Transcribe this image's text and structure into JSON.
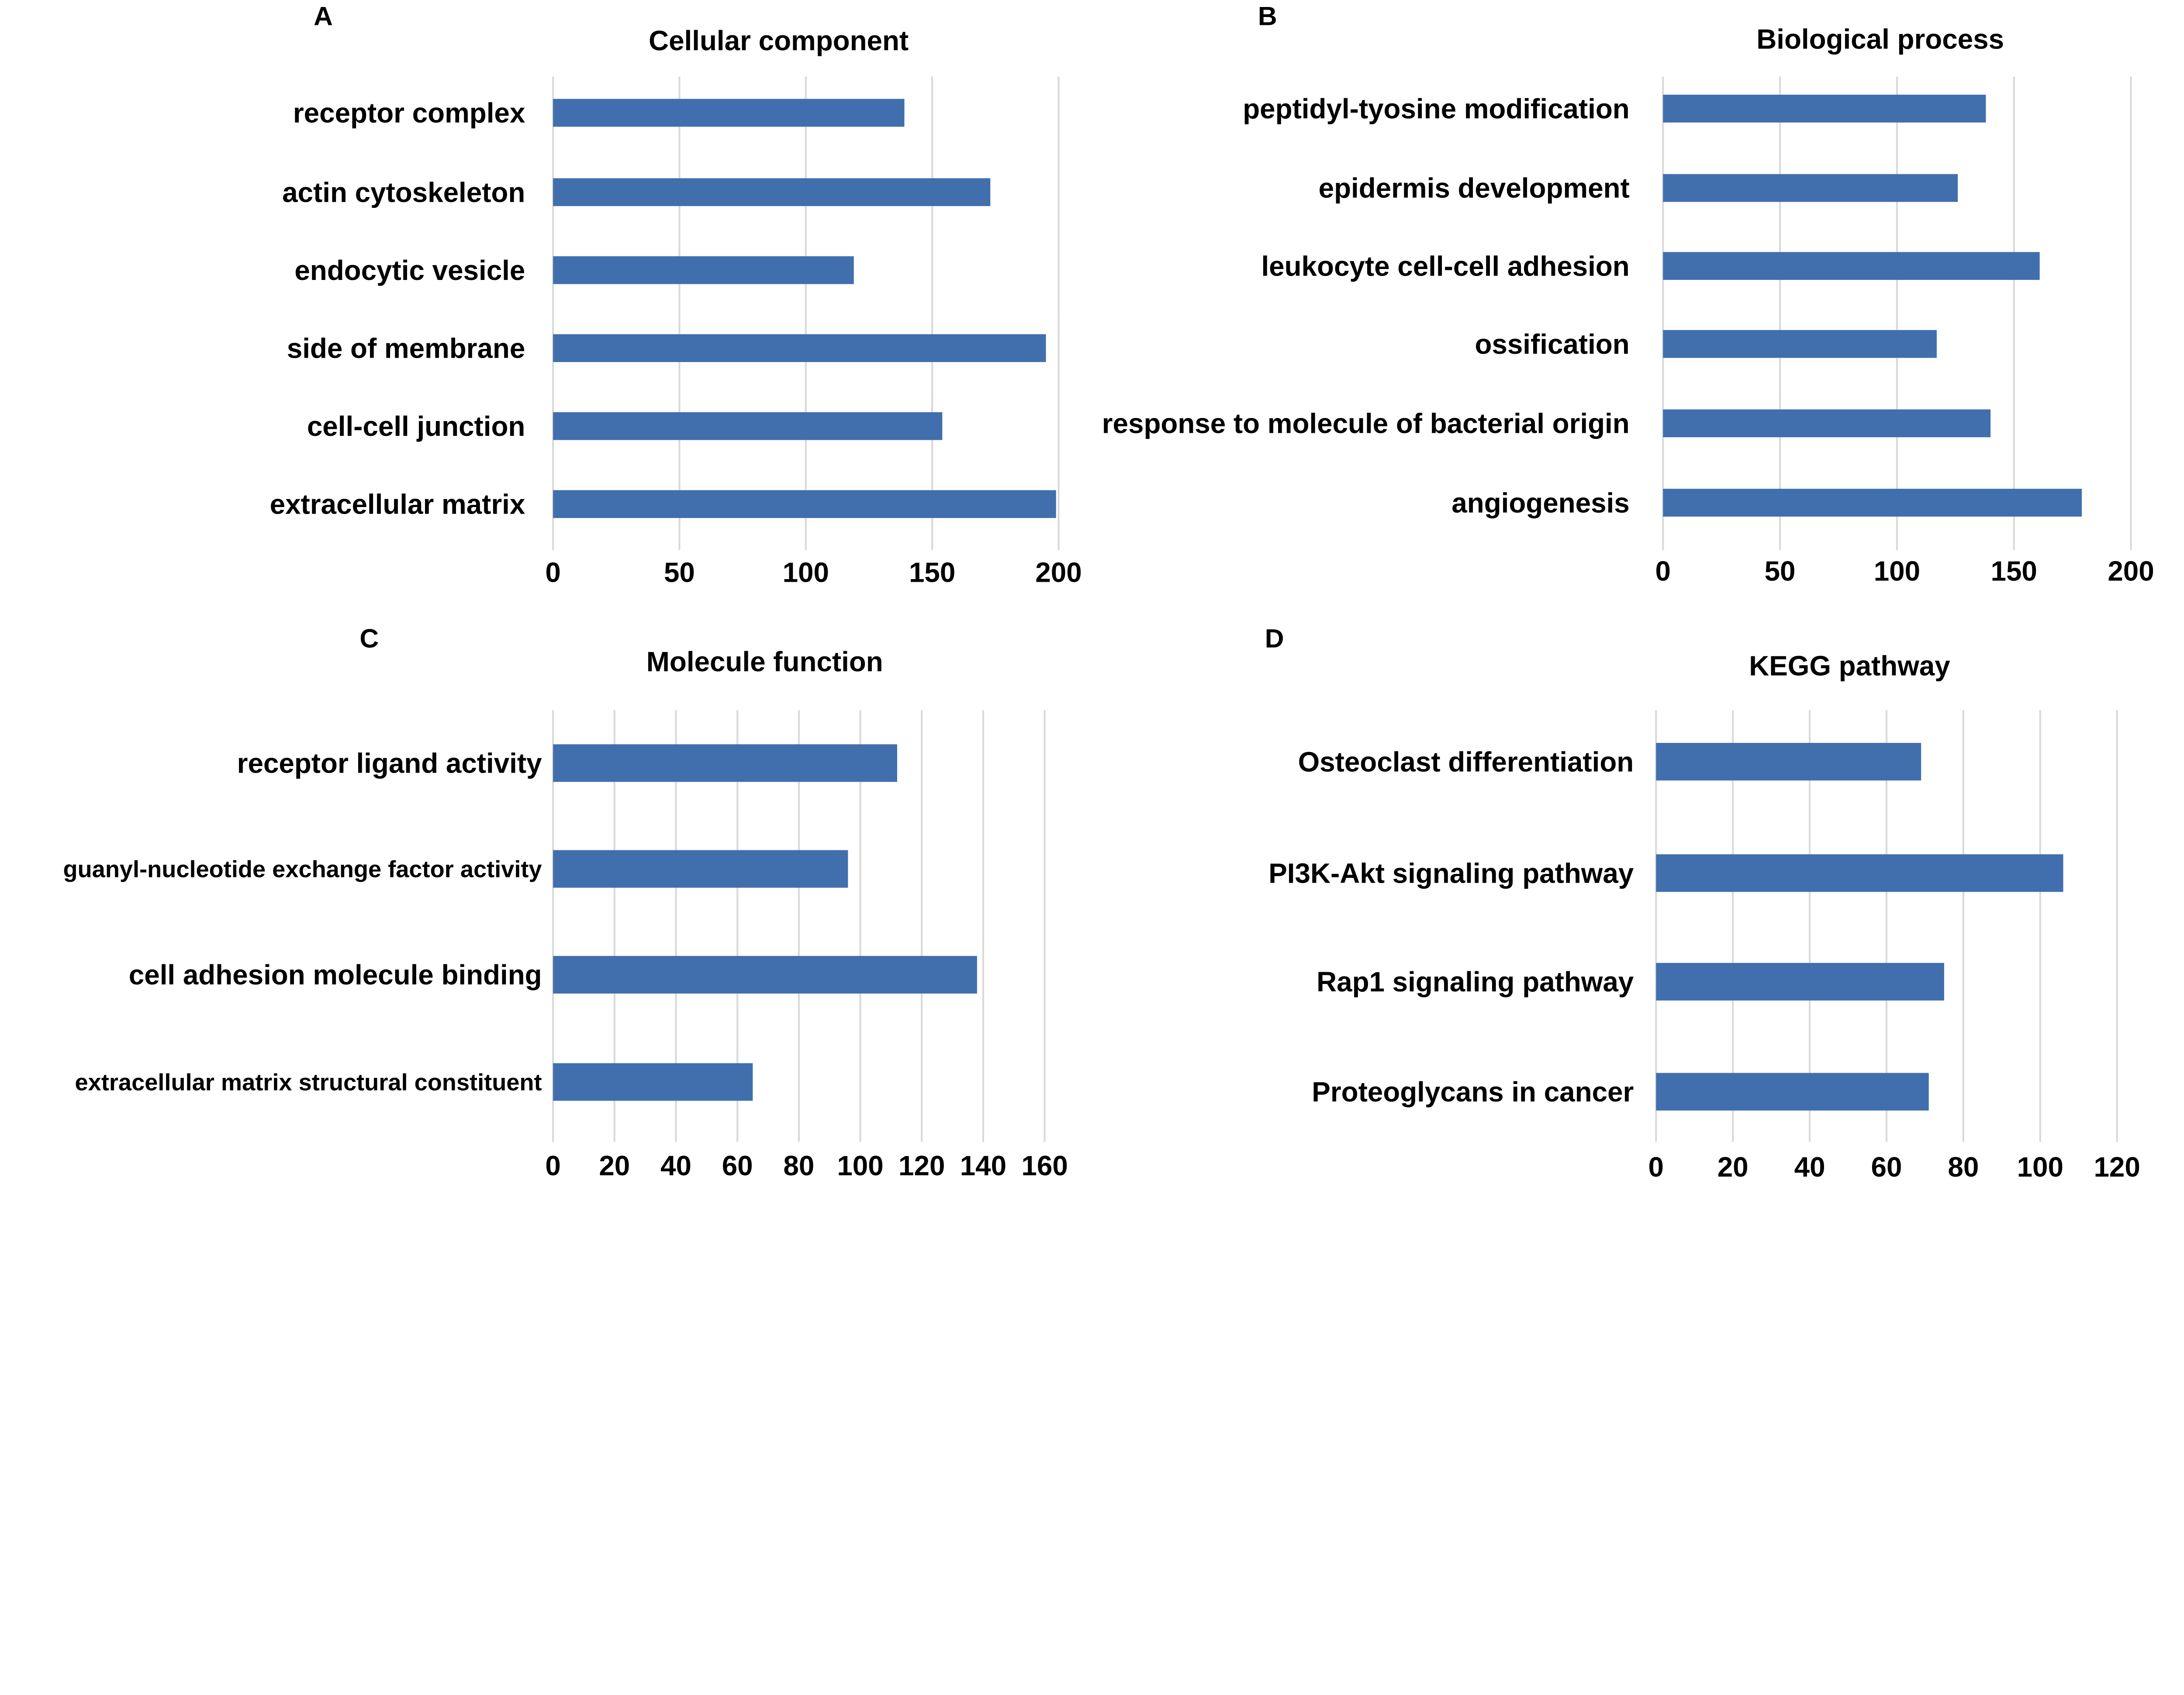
{
  "colors": {
    "bar": "#416fad",
    "grid": "#d9d9d9"
  },
  "chart_data": [
    {
      "panel": "A",
      "type": "bar",
      "orientation": "horizontal",
      "title": "Cellular component",
      "categories": [
        "receptor complex",
        "actin cytoskeleton",
        "endocytic vesicle",
        "side of membrane",
        "cell-cell junction",
        "extracellular matrix"
      ],
      "values": [
        139,
        173,
        119,
        195,
        154,
        199
      ],
      "xlim": [
        0,
        200
      ],
      "xticks": [
        0,
        50,
        100,
        150,
        200
      ],
      "grid": true
    },
    {
      "panel": "B",
      "type": "bar",
      "orientation": "horizontal",
      "title": "Biological process",
      "categories": [
        "peptidyl-tyosine modification",
        "epidermis development",
        "leukocyte cell-cell adhesion",
        "ossification",
        "response to molecule of bacterial origin",
        "angiogenesis"
      ],
      "values": [
        138,
        126,
        161,
        117,
        140,
        179
      ],
      "xlim": [
        0,
        200
      ],
      "xticks": [
        0,
        50,
        100,
        150,
        200
      ],
      "grid": true
    },
    {
      "panel": "C",
      "type": "bar",
      "orientation": "horizontal",
      "title": "Molecule function",
      "categories": [
        "receptor ligand activity",
        "guanyl-nucleotide exchange factor activity",
        "cell adhesion molecule binding",
        "extracellular matrix structural constituent"
      ],
      "values": [
        112,
        96,
        138,
        65
      ],
      "xlim": [
        0,
        160
      ],
      "xticks": [
        0,
        20,
        40,
        60,
        80,
        100,
        120,
        140,
        160
      ],
      "grid": true
    },
    {
      "panel": "D",
      "type": "bar",
      "orientation": "horizontal",
      "title": "KEGG pathway",
      "categories": [
        "Osteoclast differentiation",
        "PI3K-Akt signaling pathway",
        "Rap1 signaling pathway",
        "Proteoglycans in cancer"
      ],
      "values": [
        69,
        106,
        75,
        71
      ],
      "xlim": [
        0,
        120
      ],
      "xticks": [
        0,
        20,
        40,
        60,
        80,
        100,
        120
      ],
      "grid": true
    }
  ]
}
